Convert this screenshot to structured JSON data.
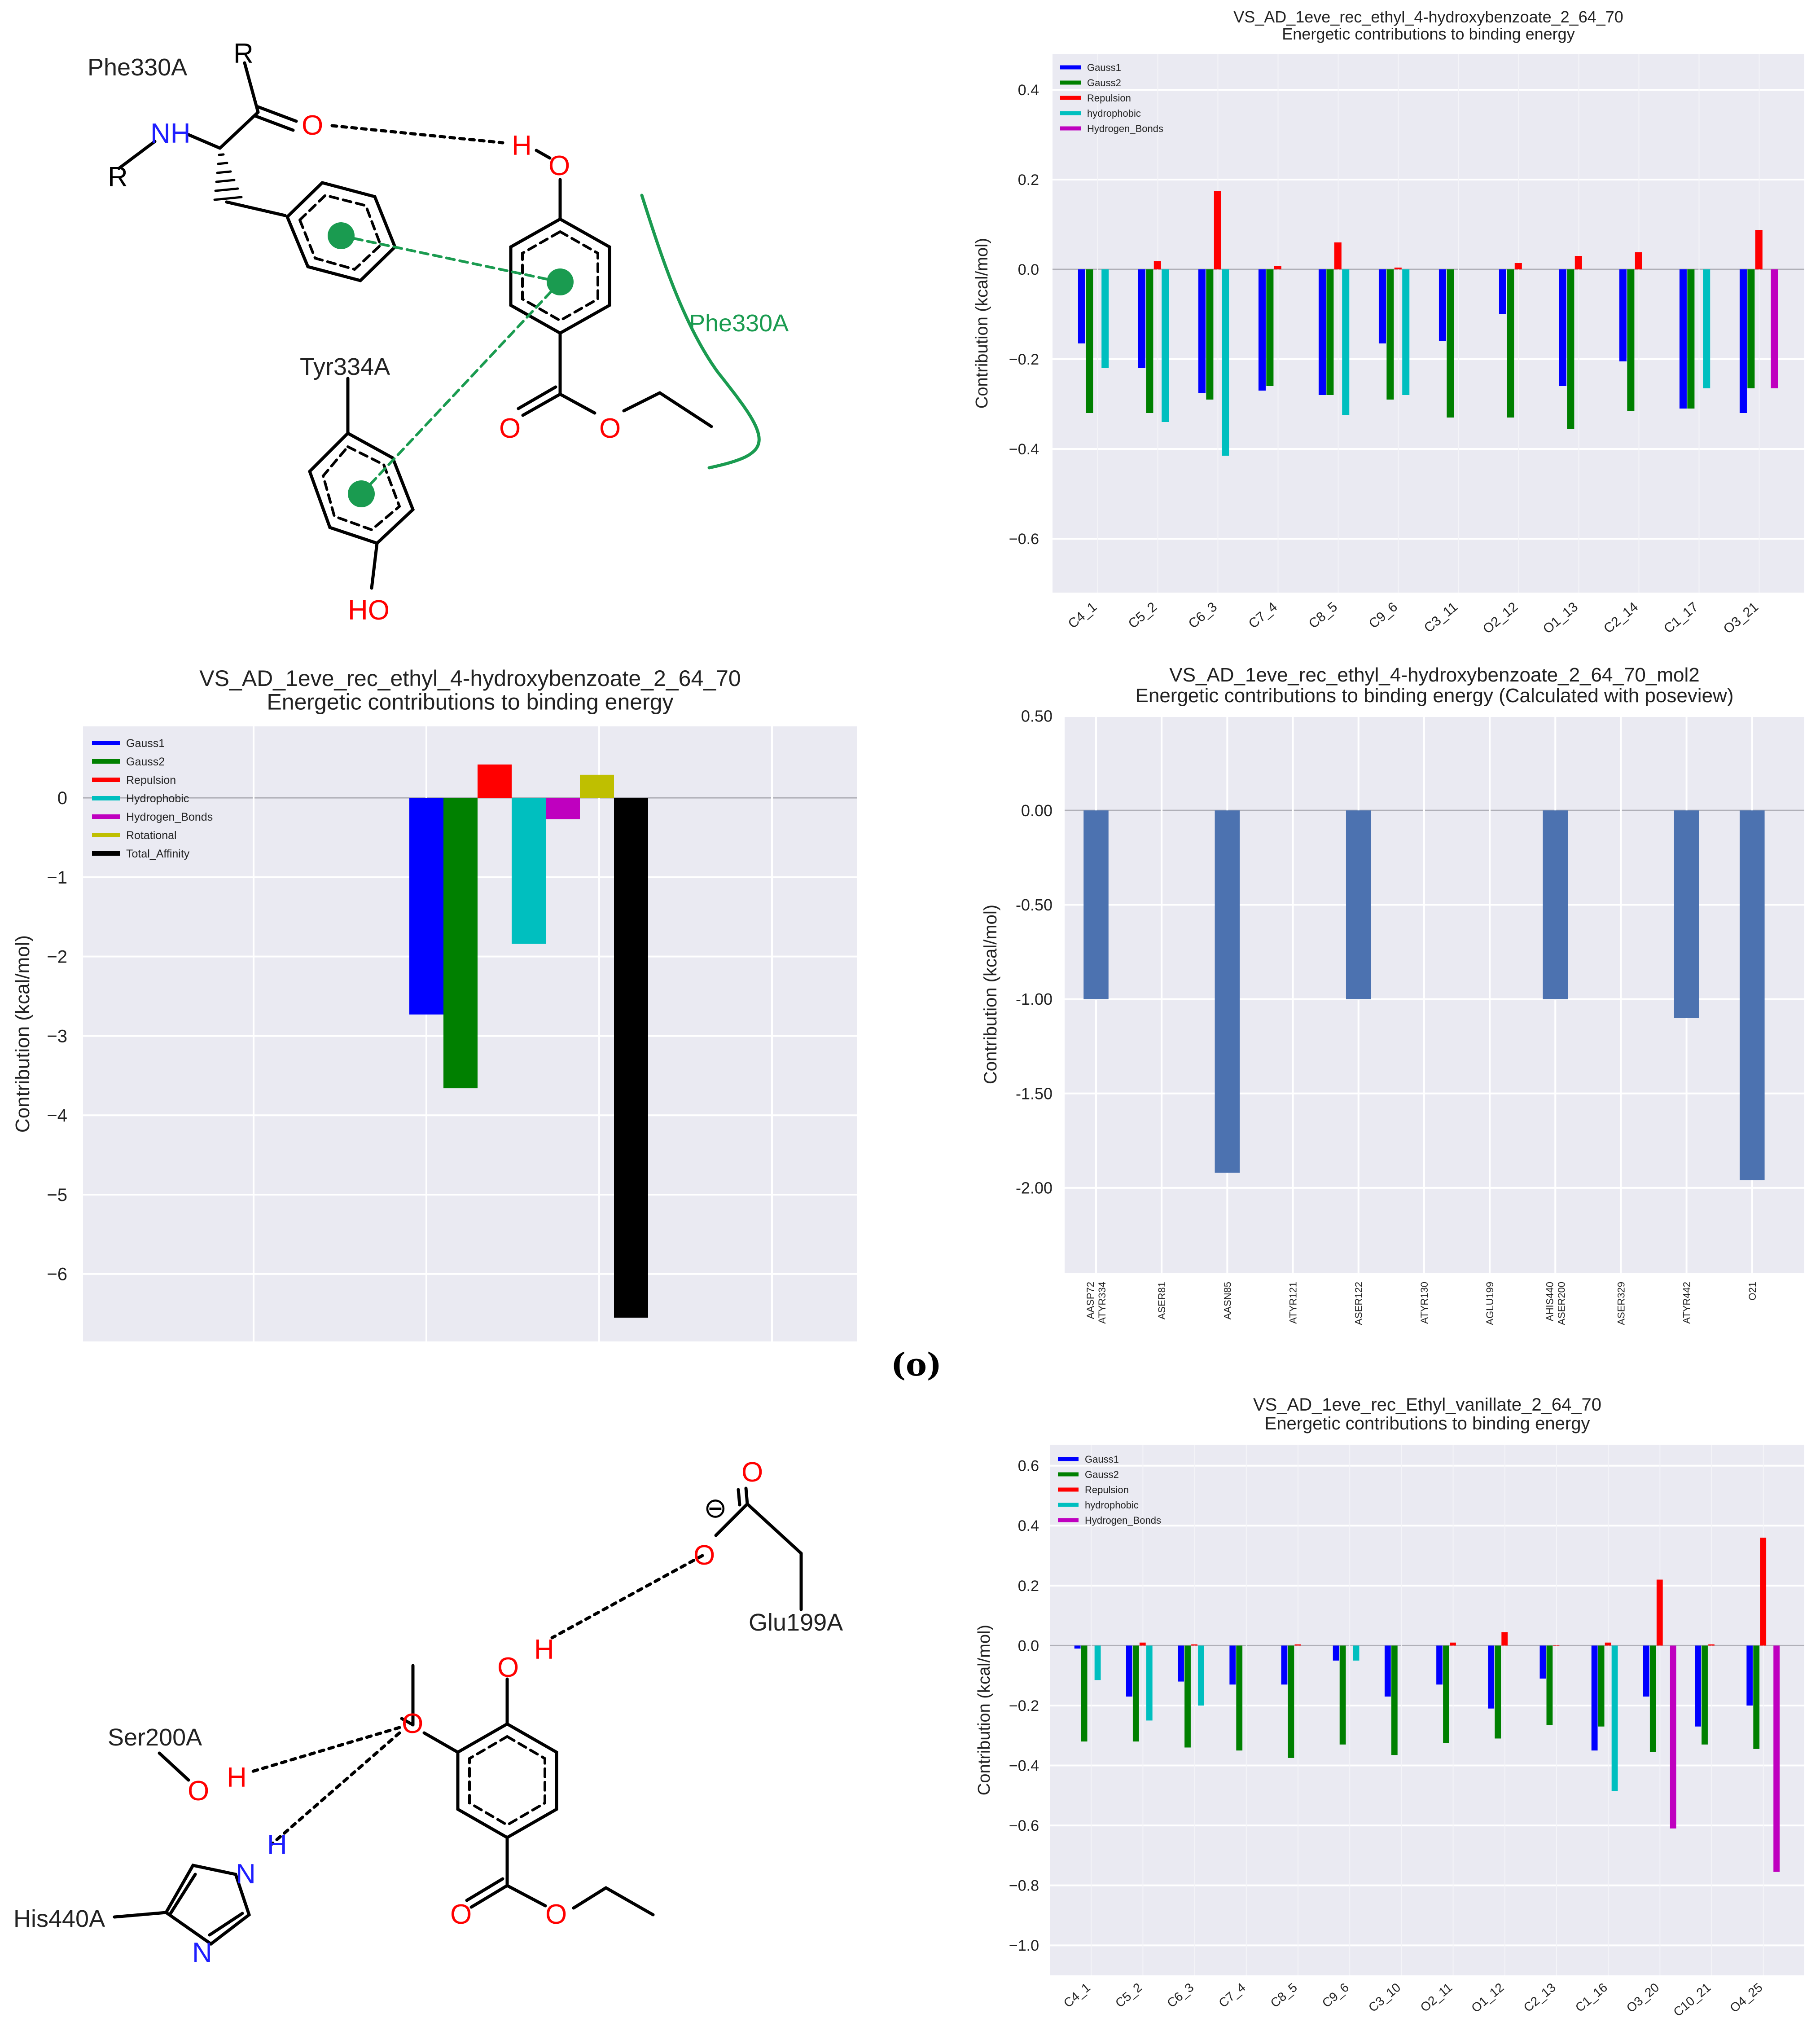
{
  "figure_label": "(o)",
  "colors": {
    "Gauss1": "#0000ff",
    "Gauss2": "#008000",
    "Repulsion": "#ff0000",
    "hydrophobic": "#00bfbf",
    "Hydrogen_Bonds": "#bf00bf",
    "Rotational": "#bfbf00",
    "Total_Affinity": "#000000",
    "poseview": "#4c72b0",
    "plot_bg": "#eaeaf2",
    "mol_green": "#1a9b50",
    "hetero_red": "#ff0000",
    "hetero_blue": "#1e1eff"
  },
  "molecules": [
    {
      "id": "ethyl-4-hydroxybenzoate",
      "labels": {
        "phe_a": "Phe330A",
        "phe_b": "Phe330A",
        "tyr": "Tyr334A",
        "r1": "R",
        "r2": "R",
        "nh": "NH",
        "o_carbonyl": "O",
        "h": "H",
        "o_hydroxyl": "O",
        "o_ester1": "O",
        "o_ester2": "O",
        "ho": "HO"
      }
    },
    {
      "id": "ethyl-vanillate",
      "labels": {
        "glu": "Glu199A",
        "ser": "Ser200A",
        "his": "His440A",
        "o_glu1": "O",
        "o_glu2": "O",
        "minus": "⊖",
        "o_hydroxyl": "O",
        "h_hydroxyl": "H",
        "o_methoxy": "O",
        "o_ser": "O",
        "h_ser": "H",
        "n_his1": "N",
        "h_his": "H",
        "n_his2": "N",
        "o_ester1": "O",
        "o_ester2": "O"
      }
    }
  ],
  "chart_data": [
    {
      "id": "chart1",
      "type": "bar",
      "title": "VS_AD_1eve_rec_ethyl_4-hydroxybenzoate_2_64_70",
      "subtitle": "Energetic contributions to binding energy",
      "xlabel": "",
      "ylabel": "Contribution (kcal/mol)",
      "ylim": [
        -0.72,
        0.48
      ],
      "yticks": [
        0.4,
        0.2,
        0.0,
        -0.2,
        -0.4,
        -0.6
      ],
      "ytick_labels": [
        "0.4",
        "0.2",
        "0.0",
        "−0.2",
        "−0.4",
        "−0.6"
      ],
      "legend_position": "top-left",
      "categories": [
        "C4_1",
        "C5_2",
        "C6_3",
        "C7_4",
        "C8_5",
        "C9_6",
        "C3_11",
        "O2_12",
        "O1_13",
        "C2_14",
        "C1_17",
        "O3_21"
      ],
      "series": [
        {
          "name": "Gauss1",
          "values": [
            -0.165,
            -0.22,
            -0.275,
            -0.27,
            -0.28,
            -0.165,
            -0.16,
            -0.1,
            -0.26,
            -0.205,
            -0.31,
            -0.32
          ]
        },
        {
          "name": "Gauss2",
          "values": [
            -0.32,
            -0.32,
            -0.29,
            -0.26,
            -0.28,
            -0.29,
            -0.33,
            -0.33,
            -0.355,
            -0.315,
            -0.31,
            -0.265
          ]
        },
        {
          "name": "Repulsion",
          "values": [
            0,
            0.018,
            0.175,
            0.008,
            0.06,
            0.004,
            0,
            0.014,
            0.03,
            0.038,
            0,
            0.088
          ]
        },
        {
          "name": "hydrophobic",
          "values": [
            -0.22,
            -0.34,
            -0.415,
            0,
            -0.325,
            -0.28,
            0,
            0,
            0,
            0,
            -0.265,
            0
          ]
        },
        {
          "name": "Hydrogen_Bonds",
          "values": [
            0,
            0,
            0,
            0,
            0,
            0,
            0,
            0,
            0,
            0,
            0,
            -0.265
          ]
        }
      ]
    },
    {
      "id": "chart2",
      "type": "bar",
      "title": "VS_AD_1eve_rec_ethyl_4-hydroxybenzoate_2_64_70",
      "subtitle": "Energetic contributions to binding energy",
      "xlabel": "",
      "ylabel": "Contribution (kcal/mol)",
      "ylim": [
        -6.85,
        0.9
      ],
      "yticks": [
        0,
        -1,
        -2,
        -3,
        -4,
        -5,
        -6
      ],
      "ytick_labels": [
        "0",
        "−1",
        "−2",
        "−3",
        "−4",
        "−5",
        "−6"
      ],
      "legend_position": "top-left",
      "categories": [
        "Gauss1",
        "Gauss2",
        "Repulsion",
        "Hydrophobic",
        "Hydrogen_Bonds",
        "Rotational",
        "Total_Affinity"
      ],
      "values": [
        -2.73,
        -3.66,
        0.42,
        -1.84,
        -0.27,
        0.29,
        -6.55
      ]
    },
    {
      "id": "chart3",
      "type": "bar",
      "title": "VS_AD_1eve_rec_ethyl_4-hydroxybenzoate_2_64_70_mol2",
      "subtitle": "Energetic contributions to binding energy (Calculated with poseview)",
      "xlabel": "",
      "ylabel": "Contribution (kcal/mol)",
      "ylim": [
        -2.45,
        0.5
      ],
      "yticks": [
        0.5,
        0.0,
        -0.5,
        -1.0,
        -1.5,
        -2.0
      ],
      "ytick_labels": [
        "0.50",
        "0.00",
        "-0.50",
        "-1.00",
        "-1.50",
        "-2.00"
      ],
      "categories": [
        "AASP72\nATYR334",
        "ASER81",
        "AASN85",
        "ATYR121",
        "ASER122",
        "ATYR130",
        "AGLU199",
        "AHIS440\nASER200",
        "ASER329",
        "ATYR442",
        "O21"
      ],
      "values": [
        -1.0,
        0,
        -1.92,
        0,
        -1.0,
        0,
        0,
        -1.0,
        0,
        -1.1,
        -1.96
      ]
    },
    {
      "id": "chart4",
      "type": "bar",
      "title": "VS_AD_1eve_rec_Ethyl_vanillate_2_64_70",
      "subtitle": "Energetic contributions to binding energy",
      "xlabel": "",
      "ylabel": "Contribution (kcal/mol)",
      "ylim": [
        -1.1,
        0.67
      ],
      "yticks": [
        0.6,
        0.4,
        0.2,
        0.0,
        -0.2,
        -0.4,
        -0.6,
        -0.8,
        -1.0
      ],
      "ytick_labels": [
        "0.6",
        "0.4",
        "0.2",
        "0.0",
        "−0.2",
        "−0.4",
        "−0.6",
        "−0.8",
        "−1.0"
      ],
      "legend_position": "top-left",
      "categories": [
        "C4_1",
        "C5_2",
        "C6_3",
        "C7_4",
        "C8_5",
        "C9_6",
        "C3_10",
        "O2_11",
        "O1_12",
        "C2_13",
        "C1_16",
        "O3_20",
        "C10_21",
        "O4_25"
      ],
      "series": [
        {
          "name": "Gauss1",
          "values": [
            -0.01,
            -0.17,
            -0.12,
            -0.13,
            -0.13,
            -0.05,
            -0.17,
            -0.13,
            -0.21,
            -0.11,
            -0.35,
            -0.17,
            -0.27,
            -0.2
          ]
        },
        {
          "name": "Gauss2",
          "values": [
            -0.32,
            -0.32,
            -0.34,
            -0.35,
            -0.375,
            -0.33,
            -0.365,
            -0.325,
            -0.31,
            -0.265,
            -0.27,
            -0.355,
            -0.33,
            -0.345
          ]
        },
        {
          "name": "Repulsion",
          "values": [
            0,
            0.01,
            0.004,
            0,
            0.004,
            0,
            0,
            0.01,
            0.045,
            0.002,
            0.01,
            0.22,
            0.004,
            0.36
          ]
        },
        {
          "name": "hydrophobic",
          "values": [
            -0.115,
            -0.25,
            -0.2,
            0,
            0,
            -0.05,
            0,
            0,
            0,
            0,
            -0.485,
            0,
            0,
            0
          ]
        },
        {
          "name": "Hydrogen_Bonds",
          "values": [
            0,
            0,
            0,
            0,
            0,
            0,
            0,
            0,
            0,
            0,
            0,
            -0.61,
            0,
            -0.755
          ]
        }
      ]
    }
  ]
}
